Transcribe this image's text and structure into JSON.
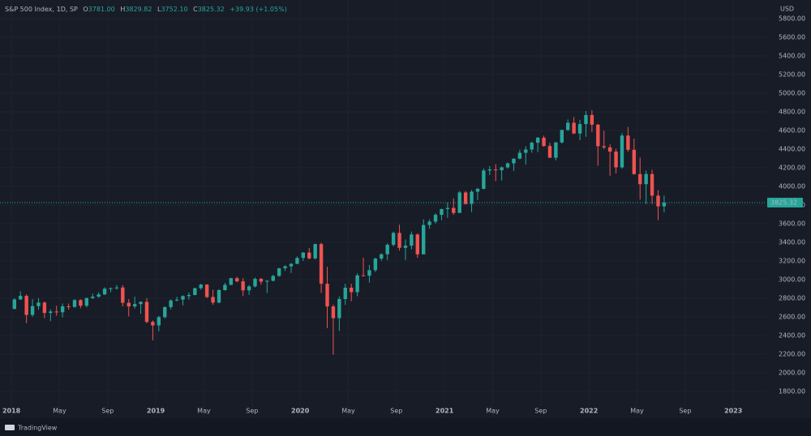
{
  "chart_data": {
    "type": "candlestick",
    "header": {
      "symbol": "S&P 500 Index, 1D, SP",
      "open_label": "O",
      "open": "3781.00",
      "high_label": "H",
      "high": "3829.82",
      "low_label": "L",
      "low": "3752.10",
      "close_label": "C",
      "close": "3825.32",
      "change": "+39.93 (+1.05%)"
    },
    "currency": "USD",
    "brand": "TradingView",
    "up_color": "#26a69a",
    "down_color": "#ef5350",
    "last_price": 3825.32,
    "open": [
      2684,
      2786,
      2824,
      2620,
      2714,
      2752,
      2641,
      2656,
      2648,
      2712,
      2705,
      2779,
      2718,
      2801,
      2816,
      2840,
      2901,
      2905,
      2914,
      2750,
      2711,
      2736,
      2760,
      2545,
      2507,
      2596,
      2704,
      2775,
      2784,
      2822,
      2834,
      2907,
      2945,
      2812,
      2752,
      2886,
      2942,
      3014,
      2980,
      2883,
      2926,
      3007,
      2977,
      2986,
      3038,
      3120,
      3141,
      3168,
      3231,
      3289,
      3226,
      3380,
      2954,
      2711,
      2585,
      2790,
      2912,
      2864,
      3044,
      3041,
      3100,
      3224,
      3271,
      3373,
      3500,
      3340,
      3363,
      3483,
      3270,
      3585,
      3621,
      3694,
      3756,
      3768,
      3714,
      3934,
      3811,
      3943,
      3973,
      4170,
      4181,
      4173,
      4204,
      4247,
      4297,
      4360,
      4395,
      4468,
      4522,
      4433,
      4307,
      4471,
      4605,
      4682,
      4567,
      4668,
      4766,
      4662,
      4431,
      4418,
      4373,
      4204,
      4545,
      4392,
      4131,
      4023,
      4132,
      3900,
      3785
    ],
    "high": [
      2800,
      2873,
      2840,
      2790,
      2801,
      2765,
      2680,
      2718,
      2742,
      2742,
      2790,
      2789,
      2805,
      2848,
      2863,
      2916,
      2916,
      2941,
      2939,
      2790,
      2815,
      2766,
      2800,
      2560,
      2610,
      2710,
      2785,
      2814,
      2830,
      2860,
      2910,
      2954,
      2950,
      2890,
      2895,
      2964,
      3018,
      3028,
      3014,
      2940,
      3021,
      3016,
      2993,
      3050,
      3124,
      3154,
      3176,
      3248,
      3295,
      3338,
      3385,
      3394,
      3136,
      2732,
      2818,
      2955,
      2955,
      3068,
      3233,
      3156,
      3233,
      3280,
      3387,
      3514,
      3588,
      3430,
      3515,
      3496,
      3646,
      3646,
      3712,
      3760,
      3826,
      3870,
      3950,
      3950,
      3960,
      3983,
      4191,
      4218,
      4238,
      4213,
      4256,
      4300,
      4393,
      4430,
      4480,
      4530,
      4545,
      4466,
      4475,
      4608,
      4718,
      4744,
      4713,
      4808,
      4818,
      4670,
      4595,
      4451,
      4402,
      4572,
      4637,
      4513,
      4308,
      4169,
      4178,
      3958,
      3900
    ],
    "low": [
      2680,
      2780,
      2532,
      2600,
      2675,
      2585,
      2553,
      2612,
      2594,
      2676,
      2698,
      2692,
      2700,
      2790,
      2802,
      2833,
      2864,
      2890,
      2710,
      2603,
      2690,
      2631,
      2530,
      2346,
      2444,
      2580,
      2680,
      2765,
      2722,
      2785,
      2830,
      2890,
      2800,
      2728,
      2744,
      2880,
      2940,
      2970,
      2822,
      2834,
      2914,
      2945,
      2855,
      2980,
      3030,
      3091,
      3070,
      3165,
      3200,
      3215,
      3214,
      2855,
      2478,
      2192,
      2447,
      2727,
      2766,
      2820,
      3034,
      2966,
      3080,
      3200,
      3210,
      3355,
      3310,
      3209,
      3323,
      3233,
      3280,
      3545,
      3600,
      3636,
      3662,
      3694,
      3725,
      3805,
      3723,
      3853,
      3967,
      4120,
      4056,
      4062,
      4190,
      4165,
      4290,
      4233,
      4360,
      4367,
      4425,
      4305,
      4278,
      4460,
      4595,
      4560,
      4495,
      4532,
      4582,
      4222,
      4400,
      4114,
      4138,
      4190,
      4370,
      4124,
      3858,
      3810,
      3810,
      3637,
      3721
    ],
    "close": [
      2786,
      2824,
      2620,
      2714,
      2752,
      2641,
      2656,
      2648,
      2712,
      2705,
      2779,
      2718,
      2801,
      2816,
      2840,
      2901,
      2905,
      2914,
      2750,
      2711,
      2736,
      2760,
      2545,
      2507,
      2596,
      2704,
      2775,
      2784,
      2822,
      2834,
      2907,
      2945,
      2812,
      2752,
      2886,
      2942,
      3014,
      2980,
      2883,
      2926,
      3007,
      2977,
      2986,
      3038,
      3120,
      3141,
      3168,
      3231,
      3289,
      3226,
      3380,
      2954,
      2711,
      2585,
      2790,
      2912,
      2864,
      3044,
      3041,
      3100,
      3224,
      3271,
      3373,
      3500,
      3340,
      3363,
      3483,
      3270,
      3585,
      3621,
      3694,
      3756,
      3768,
      3714,
      3934,
      3811,
      3943,
      3973,
      4170,
      4181,
      4173,
      4204,
      4247,
      4297,
      4360,
      4395,
      4468,
      4522,
      4433,
      4307,
      4471,
      4605,
      4682,
      4567,
      4668,
      4766,
      4662,
      4431,
      4418,
      4373,
      4204,
      4545,
      4392,
      4131,
      4023,
      4132,
      3900,
      3785,
      3825.32
    ],
    "xlim": [
      -1.9,
      125.5
    ],
    "xticks": [
      {
        "value": 0,
        "label": "2018"
      },
      {
        "value": 8,
        "label": "May"
      },
      {
        "value": 16,
        "label": "Sep"
      },
      {
        "value": 24,
        "label": "2019"
      },
      {
        "value": 32,
        "label": "May"
      },
      {
        "value": 40,
        "label": "Sep"
      },
      {
        "value": 48,
        "label": "2020"
      },
      {
        "value": 56,
        "label": "May"
      },
      {
        "value": 64,
        "label": "Sep"
      },
      {
        "value": 72,
        "label": "2021"
      },
      {
        "value": 80,
        "label": "May"
      },
      {
        "value": 88,
        "label": "Sep"
      },
      {
        "value": 96,
        "label": "2022"
      },
      {
        "value": 104,
        "label": "May"
      },
      {
        "value": 112,
        "label": "Sep"
      },
      {
        "value": 120,
        "label": "2023"
      }
    ],
    "ylim": [
      1520,
      6000
    ],
    "yticks": [
      {
        "value": 1800,
        "label": "1800.00"
      },
      {
        "value": 2000,
        "label": "2000.00"
      },
      {
        "value": 2200,
        "label": "2200.00"
      },
      {
        "value": 2400,
        "label": "2400.00"
      },
      {
        "value": 2600,
        "label": "2600.00"
      },
      {
        "value": 2800,
        "label": "2800.00"
      },
      {
        "value": 3000,
        "label": "3000.00"
      },
      {
        "value": 3200,
        "label": "3200.00"
      },
      {
        "value": 3400,
        "label": "3400.00"
      },
      {
        "value": 3600,
        "label": "3600.00"
      },
      {
        "value": 3800,
        "label": "3800.00"
      },
      {
        "value": 4000,
        "label": "4000.00"
      },
      {
        "value": 4200,
        "label": "4200.00"
      },
      {
        "value": 4400,
        "label": "4400.00"
      },
      {
        "value": 4600,
        "label": "4600.00"
      },
      {
        "value": 4800,
        "label": "4800.00"
      },
      {
        "value": 5000,
        "label": "5000.00"
      },
      {
        "value": 5200,
        "label": "5200.00"
      },
      {
        "value": 5400,
        "label": "5400.00"
      },
      {
        "value": 5600,
        "label": "5600.00"
      },
      {
        "value": 5800,
        "label": "5800.00"
      }
    ],
    "grid": true
  }
}
